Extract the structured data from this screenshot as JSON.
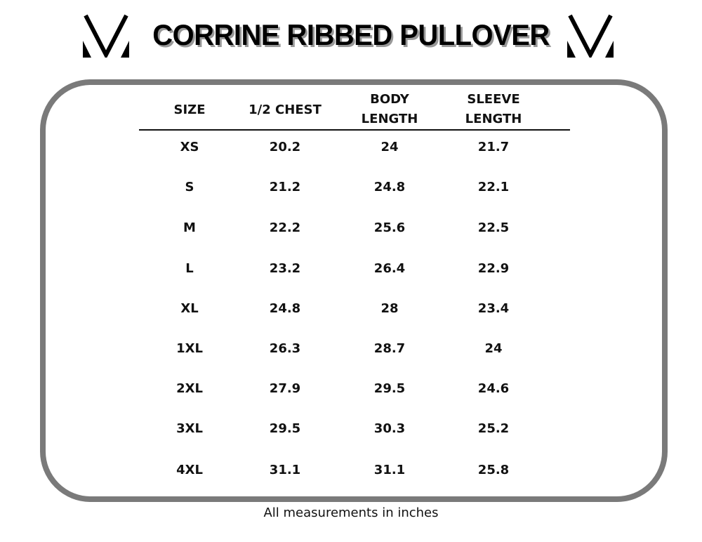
{
  "title": "CORRINE RIBBED PULLOVER",
  "logo": "stylized-v-logo",
  "headers": [
    "SIZE",
    "1/2 CHEST",
    "BODY LENGTH",
    "SLEEVE LENGTH"
  ],
  "header_lines": [
    [
      "SIZE"
    ],
    [
      "1/2 CHEST"
    ],
    [
      "BODY",
      "LENGTH"
    ],
    [
      "SLEEVE",
      "LENGTH"
    ]
  ],
  "rows": [
    [
      "XS",
      "20.2",
      "24",
      "21.7"
    ],
    [
      "S",
      "21.2",
      "24.8",
      "22.1"
    ],
    [
      "M",
      "22.2",
      "25.6",
      "22.5"
    ],
    [
      "L",
      "23.2",
      "26.4",
      "22.9"
    ],
    [
      "XL",
      "24.8",
      "28",
      "23.4"
    ],
    [
      "1XL",
      "26.3",
      "28.7",
      "24"
    ],
    [
      "2XL",
      "27.9",
      "29.5",
      "24.6"
    ],
    [
      "3XL",
      "29.5",
      "30.3",
      "25.2"
    ],
    [
      "4XL",
      "31.1",
      "31.1",
      "25.8"
    ]
  ],
  "footer": "All measurements in inches",
  "colors": {
    "frame": "#7a7a7a",
    "text": "#111111",
    "title_shadow": "#999999"
  }
}
